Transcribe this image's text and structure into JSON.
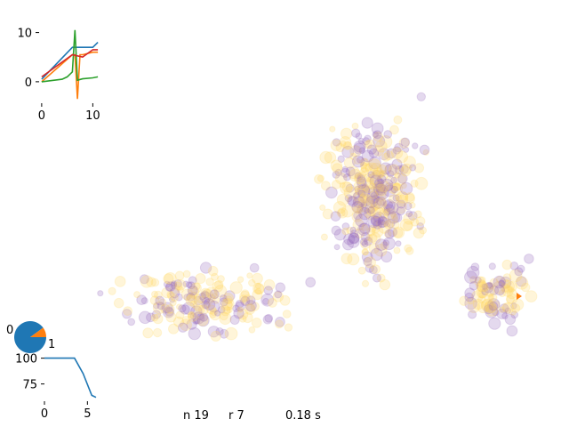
{
  "colors": {
    "blue": "#1f77b4",
    "orange": "#ff7f0e",
    "green": "#2ca02c",
    "red": "#d62728",
    "purple": "#9467bd",
    "yellow": "#ffd966",
    "scatter_alpha": 0.25
  },
  "status": {
    "n": "n 19",
    "r": "r 7",
    "t": "0.18 s"
  },
  "chart_data": [
    {
      "type": "line",
      "xlim": [
        -0.5,
        11.5
      ],
      "ylim": [
        -4,
        13
      ],
      "xticks": [
        "0",
        "10"
      ],
      "yticks": [
        "0",
        "10"
      ],
      "grid": false,
      "series": [
        {
          "color": "#1f77b4",
          "x": [
            0,
            6,
            10,
            11
          ],
          "y": [
            0.5,
            7,
            7,
            8
          ]
        },
        {
          "color": "#ff7f0e",
          "x": [
            0,
            6,
            6.5,
            7,
            7.5,
            8,
            10,
            11
          ],
          "y": [
            0,
            5.5,
            5.5,
            -3.5,
            5.5,
            5.5,
            6,
            6
          ]
        },
        {
          "color": "#2ca02c",
          "x": [
            0,
            4,
            5,
            6,
            6.5,
            7,
            8,
            10,
            11
          ],
          "y": [
            0,
            0.5,
            1,
            2,
            10.5,
            0.3,
            0.6,
            0.8,
            1
          ]
        },
        {
          "color": "#d62728",
          "x": [
            0,
            6,
            8,
            10,
            11
          ],
          "y": [
            1,
            5.5,
            5,
            6.5,
            6.5
          ]
        }
      ]
    },
    {
      "type": "pie",
      "tick_labels": [
        "0",
        "1"
      ],
      "values": [
        90,
        10
      ],
      "colors": [
        "#1f77b4",
        "#ff7f0e"
      ]
    },
    {
      "type": "line",
      "xlim": [
        0,
        6
      ],
      "ylim": [
        60,
        104
      ],
      "xticks": [
        "0",
        "5"
      ],
      "yticks": [
        "100",
        "75"
      ],
      "grid": false,
      "series": [
        {
          "color": "#1f77b4",
          "x": [
            0,
            3.5,
            4.5,
            5.5,
            6
          ],
          "y": [
            100,
            100,
            85,
            64,
            62
          ]
        }
      ]
    },
    {
      "type": "scatter",
      "xlim": [
        0,
        640
      ],
      "ylim": [
        0,
        480
      ],
      "grid": false,
      "series": [
        {
          "color": "#9467bd"
        },
        {
          "color": "#ffd966"
        },
        {
          "color": "#ff7f0e"
        }
      ],
      "count": 640,
      "marker_size_range": [
        3,
        7
      ],
      "highlight": {
        "color": "#ff7f0e",
        "x": 583,
        "y": 333
      }
    }
  ]
}
